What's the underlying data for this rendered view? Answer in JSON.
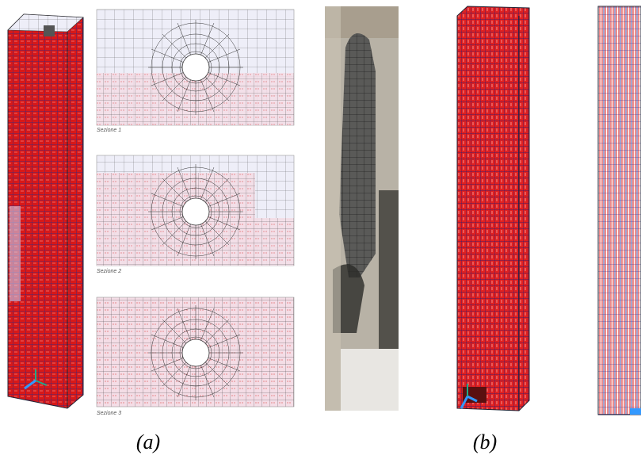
{
  "figure": {
    "sections": [
      "Sezione 1",
      "Sezione 2",
      "Sezione 3"
    ],
    "labels": [
      "(a)",
      "(b)"
    ]
  }
}
